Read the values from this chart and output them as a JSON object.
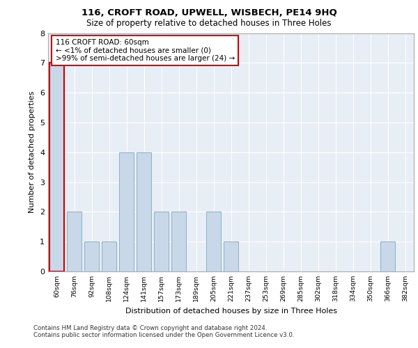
{
  "title_line1": "116, CROFT ROAD, UPWELL, WISBECH, PE14 9HQ",
  "title_line2": "Size of property relative to detached houses in Three Holes",
  "xlabel": "Distribution of detached houses by size in Three Holes",
  "ylabel": "Number of detached properties",
  "categories": [
    "60sqm",
    "76sqm",
    "92sqm",
    "108sqm",
    "124sqm",
    "141sqm",
    "157sqm",
    "173sqm",
    "189sqm",
    "205sqm",
    "221sqm",
    "237sqm",
    "253sqm",
    "269sqm",
    "285sqm",
    "302sqm",
    "318sqm",
    "334sqm",
    "350sqm",
    "366sqm",
    "382sqm"
  ],
  "values": [
    7,
    2,
    1,
    1,
    4,
    4,
    2,
    2,
    0,
    2,
    1,
    0,
    0,
    0,
    0,
    0,
    0,
    0,
    0,
    1,
    0
  ],
  "highlight_index": 0,
  "bar_color_normal": "#c8d8e8",
  "bar_edge_color": "#8aafc8",
  "highlight_bar_edge_color": "#cc0000",
  "background_color": "#e8eef5",
  "grid_color": "#ffffff",
  "ylim": [
    0,
    8
  ],
  "yticks": [
    0,
    1,
    2,
    3,
    4,
    5,
    6,
    7,
    8
  ],
  "annotation_text": "116 CROFT ROAD: 60sqm\n← <1% of detached houses are smaller (0)\n>99% of semi-detached houses are larger (24) →",
  "annotation_box_color": "#ffffff",
  "annotation_box_edge": "#cc0000",
  "footer_line1": "Contains HM Land Registry data © Crown copyright and database right 2024.",
  "footer_line2": "Contains public sector information licensed under the Open Government Licence v3.0."
}
